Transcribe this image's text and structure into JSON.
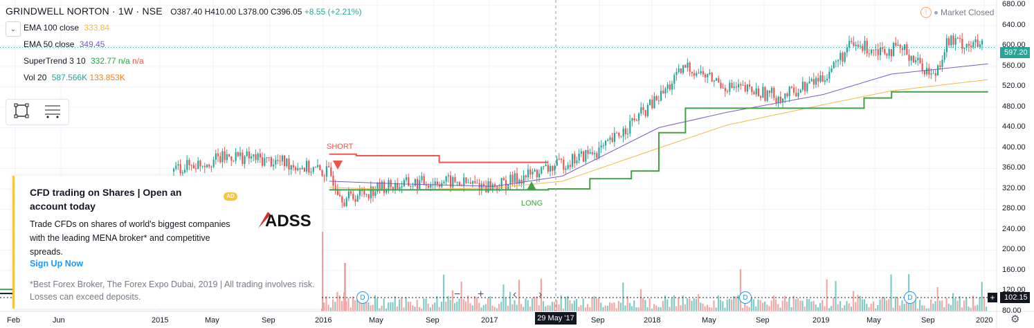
{
  "header": {
    "symbol": "GRINDWELL NORTON · 1W · NSE",
    "open": "O387.40",
    "high": "H410.00",
    "low": "L378.00",
    "close": "C396.05",
    "change": "+8.55 (+2.21%)"
  },
  "indicators": [
    {
      "name": "EMA 100 close",
      "value": "333.84",
      "color": "#f5b942"
    },
    {
      "name": "EMA 50 close",
      "value": "349.45",
      "color": "#7e57c2"
    },
    {
      "name": "SuperTrend 3 10",
      "value": "332.77",
      "extra1": "n/a",
      "extra2": "n/a",
      "color": "#26a641",
      "extra_color": "#ef5350"
    },
    {
      "name": "Vol 20",
      "value": "587.566K",
      "value2": "133.853K",
      "color": "#26a69a",
      "color2": "#f57f17"
    }
  ],
  "status": {
    "market": "Market Closed"
  },
  "ad": {
    "title": "CFD trading on Shares | Open an account today",
    "badge": "AD",
    "body": "Trade CFDs on shares of world's biggest companies with the leading MENA broker* and competitive spreads.",
    "link": "Sign Up Now",
    "disclaimer": "*Best Forex Broker, The Forex Expo Dubai, 2019 | All trading involves risk. Losses can exceed deposits.",
    "logo": "ADSS"
  },
  "signals": {
    "short": "SHORT",
    "long": "LONG"
  },
  "price_axis": [
    "680.00",
    "640.00",
    "600.00",
    "560.00",
    "520.00",
    "480.00",
    "440.00",
    "400.00",
    "360.00",
    "320.00",
    "280.00",
    "240.00",
    "200.00",
    "160.00",
    "120.00",
    "80.00"
  ],
  "price_badge": "597.20",
  "price_badge2": "102.15",
  "time_axis": [
    "Feb",
    "Jun",
    "2015",
    "May",
    "Sep",
    "2016",
    "May",
    "Sep",
    "2017",
    "Sep",
    "2018",
    "May",
    "Sep",
    "2019",
    "May",
    "Sep",
    "2020"
  ],
  "crosshair_time": "29 May '17",
  "controls": {
    "minus": "−",
    "plus": "+",
    "left": "‹",
    "right": "›"
  },
  "dividend_marker": "D",
  "colors": {
    "up": "#26a69a",
    "down": "#ef5350",
    "ema100": "#f5b942",
    "ema50": "#7e57c2",
    "st_up": "#43a047",
    "st_down": "#ef5350"
  },
  "chart_data": {
    "type": "candlestick",
    "ylim": [
      80,
      690
    ],
    "price_path": [
      [
        "2014-02",
        115
      ],
      [
        "2015-01",
        355
      ],
      [
        "2015-06",
        385
      ],
      [
        "2015-10",
        370
      ],
      [
        "2016-01",
        350
      ],
      [
        "2016-02",
        300
      ],
      [
        "2016-05",
        325
      ],
      [
        "2016-09",
        335
      ],
      [
        "2017-01",
        325
      ],
      [
        "2017-05",
        360
      ],
      [
        "2017-09",
        400
      ],
      [
        "2018-01",
        500
      ],
      [
        "2018-03",
        560
      ],
      [
        "2018-06",
        520
      ],
      [
        "2018-10",
        500
      ],
      [
        "2019-01",
        540
      ],
      [
        "2019-03",
        600
      ],
      [
        "2019-07",
        590
      ],
      [
        "2019-09",
        540
      ],
      [
        "2019-10",
        610
      ],
      [
        "2020-01",
        597
      ]
    ],
    "ema100_path": [
      [
        "2016-01",
        323
      ],
      [
        "2016-06",
        318
      ],
      [
        "2017-01",
        322
      ],
      [
        "2017-06",
        335
      ],
      [
        "2018-01",
        400
      ],
      [
        "2018-06",
        445
      ],
      [
        "2019-01",
        485
      ],
      [
        "2019-06",
        512
      ],
      [
        "2020-01",
        534
      ]
    ],
    "ema50_path": [
      [
        "2016-01",
        335
      ],
      [
        "2016-06",
        330
      ],
      [
        "2017-01",
        325
      ],
      [
        "2017-06",
        345
      ],
      [
        "2018-01",
        440
      ],
      [
        "2018-06",
        470
      ],
      [
        "2019-01",
        505
      ],
      [
        "2019-06",
        545
      ],
      [
        "2020-01",
        565
      ]
    ],
    "supertrend_down": [
      [
        "2016-01",
        388
      ],
      [
        "2016-03",
        385
      ],
      [
        "2016-09",
        372
      ],
      [
        "2017-05",
        372
      ]
    ],
    "supertrend_up": [
      [
        "2016-01",
        318
      ],
      [
        "2017-05",
        320
      ],
      [
        "2017-08",
        340
      ],
      [
        "2017-11",
        355
      ],
      [
        "2018-01",
        430
      ],
      [
        "2018-03",
        478
      ],
      [
        "2019-01",
        478
      ],
      [
        "2019-04",
        498
      ],
      [
        "2019-06",
        510
      ],
      [
        "2020-01",
        510
      ]
    ]
  }
}
